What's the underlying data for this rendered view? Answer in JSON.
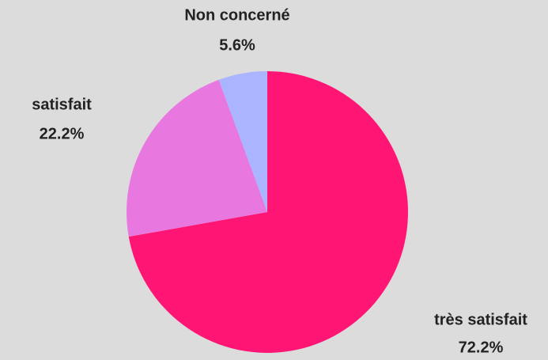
{
  "chart_data": {
    "type": "pie",
    "categories": [
      "très satisfait",
      "satisfait",
      "Non concerné"
    ],
    "values": [
      72.2,
      22.2,
      5.6
    ],
    "value_labels": [
      "72.2%",
      "22.2%",
      "5.6%"
    ],
    "colors": [
      "#ff1675",
      "#e878e0",
      "#aab4ff"
    ]
  }
}
